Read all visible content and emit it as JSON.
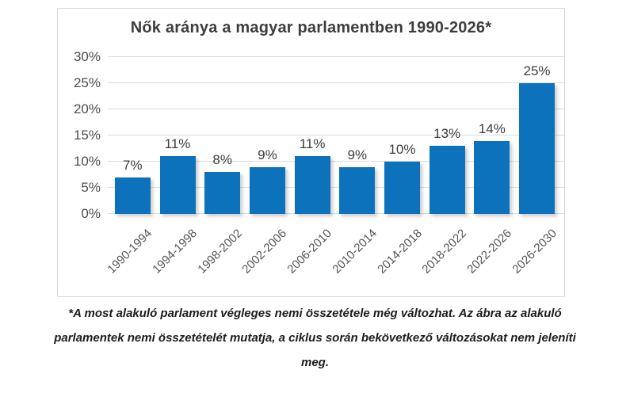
{
  "page": {
    "background_color": "#ffffff"
  },
  "chart": {
    "title": "Nők aránya a magyar parlamentben 1990-2026*",
    "footnote": "*A most alakuló parlament végleges nemi összetétele még változhat. Az ábra az alakuló parlamentek nemi összetételét mutatja, a ciklus során bekövetkező változásokat nem jeleníti meg."
  },
  "chart_data": {
    "type": "bar",
    "title": "Nők aránya a magyar parlamentben 1990-2026*",
    "categories": [
      "1990-1994",
      "1994-1998",
      "1998-2002",
      "2002-2006",
      "2006-2010",
      "2010-2014",
      "2014-2018",
      "2018-2022",
      "2022-2026",
      "2026-2030"
    ],
    "values": [
      7,
      11,
      8,
      9,
      11,
      9,
      10,
      13,
      14,
      25
    ],
    "data_labels": [
      "7%",
      "11%",
      "8%",
      "9%",
      "11%",
      "9%",
      "10%",
      "13%",
      "14%",
      "25%"
    ],
    "xlabel": "",
    "ylabel": "",
    "ylim": [
      0,
      30
    ],
    "yticks": [
      0,
      5,
      10,
      15,
      20,
      25,
      30
    ],
    "ytick_labels": [
      "0%",
      "5%",
      "10%",
      "15%",
      "20%",
      "25%",
      "30%"
    ],
    "grid": true,
    "legend": false,
    "x_tick_rotation_deg": 45,
    "colors": {
      "bar": "#0d72bc",
      "gridline": "#dcdcdc",
      "title_text": "#3d3d3d",
      "data_label_text": "#3d3d3d",
      "y_axis_text": "#4d4d4d",
      "x_axis_text": "#555555",
      "footnote_text": "#1c1c1c",
      "card_border": "#d8d8d8"
    }
  }
}
